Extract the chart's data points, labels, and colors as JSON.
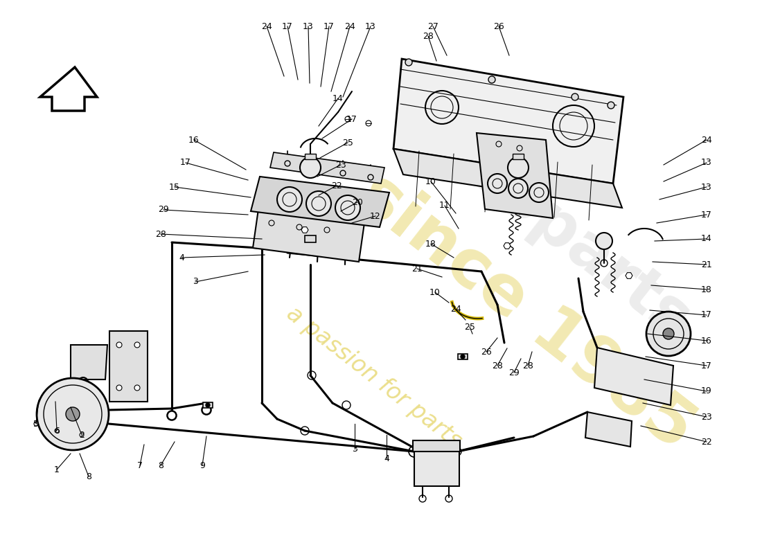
{
  "bg_color": "#ffffff",
  "line_color": "#000000",
  "watermark_color": "#d4b800",
  "label_fontsize": 9,
  "top_labels": [
    [
      385,
      762,
      410,
      690,
      "24"
    ],
    [
      415,
      762,
      430,
      685,
      "17"
    ],
    [
      445,
      762,
      447,
      680,
      "13"
    ],
    [
      475,
      762,
      463,
      675,
      "17"
    ],
    [
      505,
      762,
      478,
      668,
      "24"
    ],
    [
      535,
      762,
      495,
      660,
      "13"
    ]
  ],
  "engine_top_labels": [
    [
      625,
      762,
      645,
      720,
      "27"
    ],
    [
      720,
      762,
      735,
      720,
      "26"
    ],
    [
      618,
      748,
      630,
      712,
      "28"
    ]
  ],
  "left_cluster_labels": [
    [
      280,
      598,
      355,
      555,
      "16"
    ],
    [
      268,
      565,
      358,
      540,
      "17"
    ],
    [
      252,
      530,
      362,
      515,
      "15"
    ],
    [
      236,
      497,
      358,
      490,
      "29"
    ],
    [
      232,
      462,
      378,
      455,
      "28"
    ],
    [
      262,
      428,
      382,
      432,
      "4"
    ],
    [
      282,
      393,
      358,
      408,
      "3"
    ]
  ],
  "center_labels": [
    [
      488,
      658,
      460,
      618,
      "14"
    ],
    [
      508,
      628,
      465,
      600,
      "17"
    ],
    [
      502,
      594,
      462,
      572,
      "25"
    ],
    [
      492,
      562,
      458,
      545,
      "23"
    ],
    [
      486,
      532,
      460,
      518,
      "22"
    ],
    [
      516,
      508,
      492,
      495,
      "20"
    ],
    [
      542,
      488,
      508,
      478,
      "12"
    ]
  ],
  "right_center_labels": [
    [
      622,
      538,
      658,
      492,
      "10"
    ],
    [
      642,
      503,
      662,
      470,
      "11"
    ],
    [
      622,
      448,
      655,
      428,
      "18"
    ],
    [
      602,
      412,
      638,
      400,
      "21"
    ],
    [
      628,
      378,
      648,
      363,
      "10"
    ],
    [
      658,
      353,
      672,
      338,
      "24"
    ],
    [
      678,
      328,
      682,
      318,
      "25"
    ]
  ],
  "far_right_labels": [
    [
      1020,
      598,
      958,
      562,
      "24"
    ],
    [
      1020,
      565,
      958,
      538,
      "13"
    ],
    [
      1020,
      530,
      952,
      512,
      "13"
    ],
    [
      1020,
      490,
      948,
      478,
      "17"
    ],
    [
      1020,
      455,
      945,
      452,
      "14"
    ],
    [
      1020,
      418,
      942,
      422,
      "21"
    ],
    [
      1020,
      382,
      940,
      388,
      "18"
    ],
    [
      1020,
      345,
      938,
      352,
      "17"
    ],
    [
      1020,
      308,
      935,
      318,
      "16"
    ],
    [
      1020,
      272,
      932,
      285,
      "17"
    ],
    [
      1020,
      235,
      930,
      252,
      "19"
    ],
    [
      1020,
      198,
      928,
      218,
      "23"
    ],
    [
      1020,
      162,
      925,
      185,
      "22"
    ]
  ],
  "bottom_left_labels": [
    [
      52,
      188,
      56,
      222,
      "5"
    ],
    [
      82,
      178,
      80,
      220,
      "6"
    ],
    [
      118,
      172,
      102,
      212,
      "2"
    ],
    [
      82,
      122,
      102,
      145,
      "1"
    ],
    [
      128,
      112,
      115,
      145,
      "8"
    ],
    [
      202,
      128,
      208,
      158,
      "7"
    ],
    [
      232,
      128,
      252,
      162,
      "8"
    ],
    [
      292,
      128,
      298,
      170,
      "9"
    ]
  ],
  "bottom_center_labels": [
    [
      512,
      152,
      512,
      188,
      "3"
    ],
    [
      558,
      138,
      558,
      172,
      "4"
    ]
  ],
  "bottom_right_labels": [
    [
      702,
      292,
      718,
      312,
      "26"
    ],
    [
      718,
      272,
      732,
      297,
      "28"
    ],
    [
      742,
      262,
      752,
      282,
      "29"
    ],
    [
      762,
      272,
      768,
      292,
      "28"
    ]
  ]
}
